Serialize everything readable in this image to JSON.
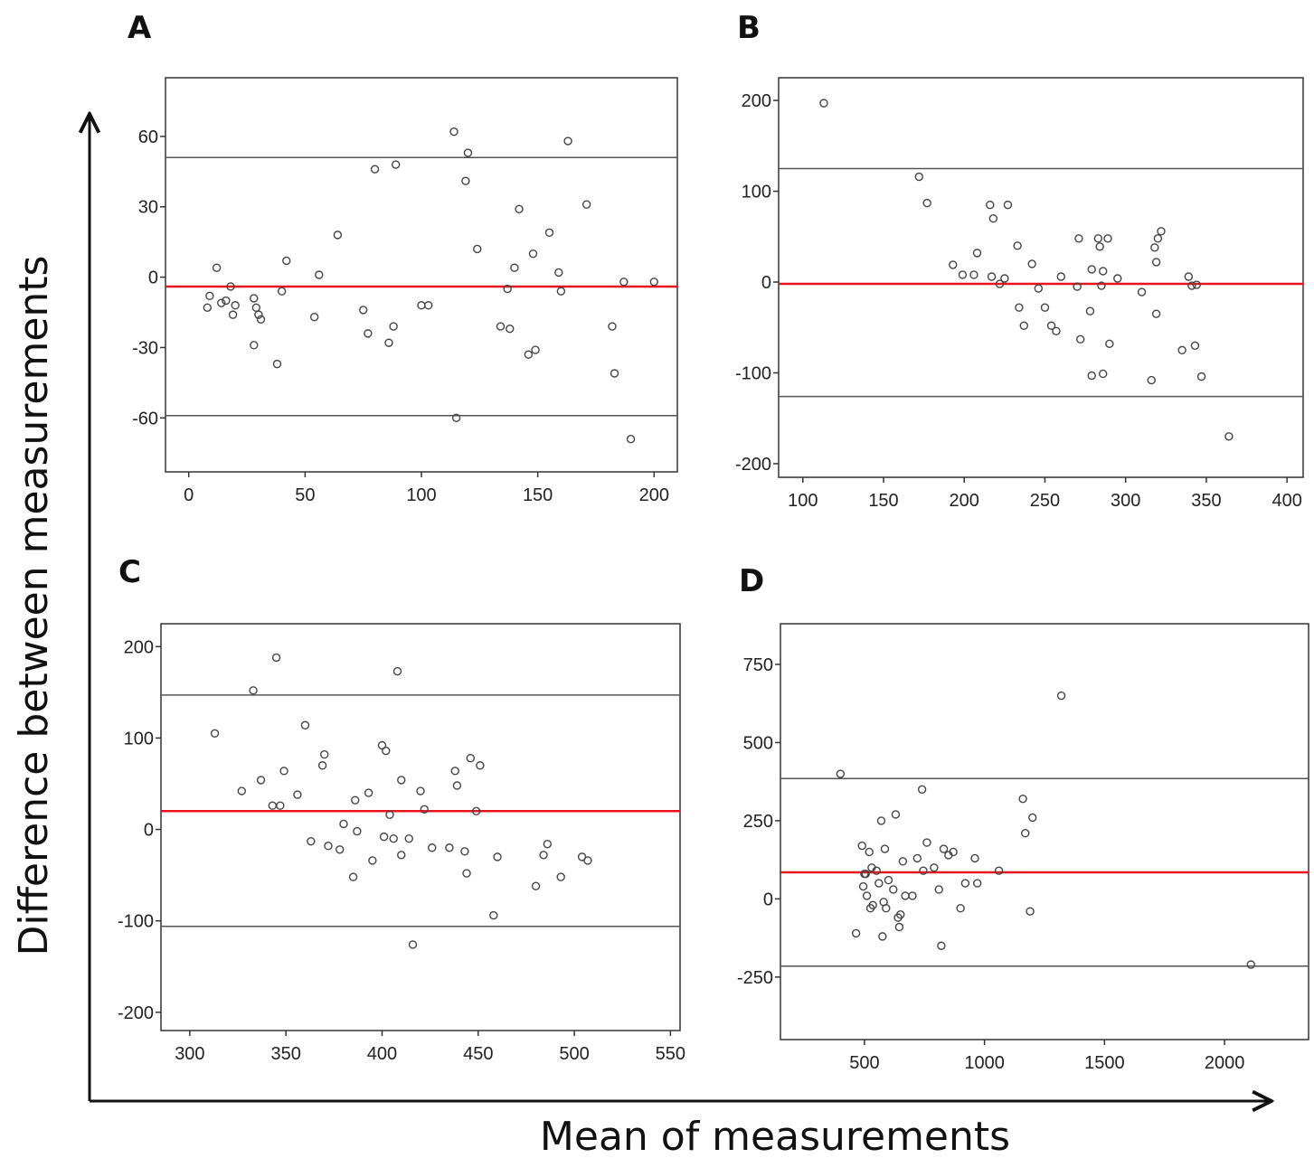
{
  "figure": {
    "x_title": "Mean of measurements",
    "y_title": "Difference between measurements"
  },
  "colors": {
    "mean_line": "#e8141c",
    "limit_line": "#555555",
    "points": "#444444"
  },
  "chart_data": [
    {
      "type": "scatter",
      "panel": "A",
      "xlim": [
        -10,
        210
      ],
      "ylim": [
        -83,
        85
      ],
      "xticks": [
        0,
        50,
        100,
        150,
        200
      ],
      "yticks": [
        60,
        30,
        0,
        -30,
        -60
      ],
      "mean_line": -4,
      "upper_limit": 51,
      "lower_limit": -59,
      "points": [
        [
          8,
          -13
        ],
        [
          9,
          -8
        ],
        [
          12,
          4
        ],
        [
          14,
          -11
        ],
        [
          16,
          -10
        ],
        [
          18,
          -4
        ],
        [
          19,
          -16
        ],
        [
          20,
          -12
        ],
        [
          28,
          -9
        ],
        [
          28,
          -29
        ],
        [
          29,
          -13
        ],
        [
          30,
          -16
        ],
        [
          31,
          -18
        ],
        [
          38,
          -37
        ],
        [
          40,
          -6
        ],
        [
          42,
          7
        ],
        [
          54,
          -17
        ],
        [
          56,
          1
        ],
        [
          64,
          18
        ],
        [
          75,
          -14
        ],
        [
          77,
          -24
        ],
        [
          80,
          46
        ],
        [
          86,
          -28
        ],
        [
          88,
          -21
        ],
        [
          89,
          48
        ],
        [
          100,
          -12
        ],
        [
          103,
          -12
        ],
        [
          114,
          62
        ],
        [
          115,
          -60
        ],
        [
          119,
          41
        ],
        [
          120,
          53
        ],
        [
          124,
          12
        ],
        [
          134,
          -21
        ],
        [
          137,
          -5
        ],
        [
          138,
          -22
        ],
        [
          140,
          4
        ],
        [
          142,
          29
        ],
        [
          146,
          -33
        ],
        [
          148,
          10
        ],
        [
          149,
          -31
        ],
        [
          155,
          19
        ],
        [
          159,
          2
        ],
        [
          160,
          -6
        ],
        [
          163,
          58
        ],
        [
          171,
          31
        ],
        [
          182,
          -21
        ],
        [
          183,
          -41
        ],
        [
          187,
          -2
        ],
        [
          190,
          -69
        ],
        [
          200,
          -2
        ]
      ]
    },
    {
      "type": "scatter",
      "panel": "B",
      "xlim": [
        85,
        410
      ],
      "ylim": [
        -215,
        225
      ],
      "xticks": [
        100,
        150,
        200,
        250,
        300,
        350,
        400
      ],
      "yticks": [
        200,
        100,
        0,
        -100,
        -200
      ],
      "mean_line": -2,
      "upper_limit": 125,
      "lower_limit": -126,
      "points": [
        [
          113,
          197
        ],
        [
          172,
          116
        ],
        [
          177,
          87
        ],
        [
          193,
          19
        ],
        [
          199,
          8
        ],
        [
          206,
          8
        ],
        [
          208,
          32
        ],
        [
          216,
          85
        ],
        [
          217,
          6
        ],
        [
          218,
          70
        ],
        [
          222,
          -2
        ],
        [
          225,
          4
        ],
        [
          227,
          85
        ],
        [
          233,
          40
        ],
        [
          234,
          -28
        ],
        [
          237,
          -48
        ],
        [
          242,
          20
        ],
        [
          246,
          -7
        ],
        [
          250,
          -28
        ],
        [
          254,
          -48
        ],
        [
          257,
          -54
        ],
        [
          260,
          6
        ],
        [
          270,
          -5
        ],
        [
          271,
          48
        ],
        [
          272,
          -63
        ],
        [
          278,
          -32
        ],
        [
          279,
          14
        ],
        [
          279,
          -103
        ],
        [
          283,
          48
        ],
        [
          284,
          39
        ],
        [
          285,
          -4
        ],
        [
          286,
          -101
        ],
        [
          286,
          12
        ],
        [
          289,
          48
        ],
        [
          290,
          -68
        ],
        [
          295,
          4
        ],
        [
          310,
          -11
        ],
        [
          316,
          -108
        ],
        [
          318,
          38
        ],
        [
          319,
          -35
        ],
        [
          319,
          22
        ],
        [
          320,
          48
        ],
        [
          322,
          56
        ],
        [
          335,
          -75
        ],
        [
          339,
          6
        ],
        [
          341,
          -4
        ],
        [
          343,
          -70
        ],
        [
          344,
          -3
        ],
        [
          347,
          -104
        ],
        [
          364,
          -170
        ]
      ]
    },
    {
      "type": "scatter",
      "panel": "C",
      "xlim": [
        285,
        555
      ],
      "ylim": [
        -220,
        225
      ],
      "xticks": [
        300,
        350,
        400,
        450,
        500,
        550
      ],
      "yticks": [
        200,
        100,
        0,
        -100,
        -200
      ],
      "mean_line": 20,
      "upper_limit": 147,
      "lower_limit": -106,
      "points": [
        [
          313,
          105
        ],
        [
          327,
          42
        ],
        [
          333,
          152
        ],
        [
          337,
          54
        ],
        [
          343,
          26
        ],
        [
          345,
          188
        ],
        [
          347,
          26
        ],
        [
          349,
          64
        ],
        [
          356,
          38
        ],
        [
          360,
          114
        ],
        [
          363,
          -13
        ],
        [
          369,
          70
        ],
        [
          370,
          82
        ],
        [
          372,
          -18
        ],
        [
          378,
          -22
        ],
        [
          380,
          6
        ],
        [
          385,
          -52
        ],
        [
          386,
          32
        ],
        [
          387,
          -2
        ],
        [
          393,
          40
        ],
        [
          395,
          -34
        ],
        [
          400,
          92
        ],
        [
          401,
          -8
        ],
        [
          402,
          86
        ],
        [
          404,
          16
        ],
        [
          406,
          -10
        ],
        [
          408,
          173
        ],
        [
          410,
          -28
        ],
        [
          410,
          54
        ],
        [
          414,
          -10
        ],
        [
          420,
          42
        ],
        [
          422,
          22
        ],
        [
          426,
          -20
        ],
        [
          435,
          -20
        ],
        [
          438,
          64
        ],
        [
          439,
          48
        ],
        [
          443,
          -24
        ],
        [
          444,
          -48
        ],
        [
          446,
          78
        ],
        [
          449,
          20
        ],
        [
          451,
          70
        ],
        [
          458,
          -94
        ],
        [
          460,
          -30
        ],
        [
          480,
          -62
        ],
        [
          484,
          -28
        ],
        [
          486,
          -16
        ],
        [
          493,
          -52
        ],
        [
          504,
          -30
        ],
        [
          507,
          -34
        ],
        [
          416,
          -126
        ]
      ]
    },
    {
      "type": "scatter",
      "panel": "D",
      "xlim": [
        150,
        2350
      ],
      "ylim": [
        -450,
        880
      ],
      "xticks": [
        500,
        1000,
        1500,
        2000
      ],
      "yticks": [
        750,
        500,
        250,
        0,
        -250
      ],
      "mean_line": 85,
      "upper_limit": 385,
      "lower_limit": -215,
      "points": [
        [
          400,
          400
        ],
        [
          465,
          -110
        ],
        [
          490,
          170
        ],
        [
          495,
          40
        ],
        [
          500,
          80
        ],
        [
          505,
          80
        ],
        [
          510,
          10
        ],
        [
          520,
          150
        ],
        [
          525,
          -30
        ],
        [
          530,
          100
        ],
        [
          535,
          -20
        ],
        [
          550,
          90
        ],
        [
          560,
          50
        ],
        [
          570,
          250
        ],
        [
          575,
          -120
        ],
        [
          580,
          -10
        ],
        [
          585,
          160
        ],
        [
          590,
          -30
        ],
        [
          600,
          60
        ],
        [
          620,
          30
        ],
        [
          630,
          270
        ],
        [
          640,
          -60
        ],
        [
          645,
          -90
        ],
        [
          650,
          -50
        ],
        [
          660,
          120
        ],
        [
          670,
          10
        ],
        [
          700,
          10
        ],
        [
          720,
          130
        ],
        [
          740,
          350
        ],
        [
          745,
          90
        ],
        [
          760,
          180
        ],
        [
          790,
          100
        ],
        [
          810,
          30
        ],
        [
          820,
          -150
        ],
        [
          830,
          160
        ],
        [
          850,
          140
        ],
        [
          870,
          150
        ],
        [
          900,
          -30
        ],
        [
          920,
          50
        ],
        [
          960,
          130
        ],
        [
          970,
          50
        ],
        [
          1060,
          90
        ],
        [
          1160,
          320
        ],
        [
          1170,
          210
        ],
        [
          1190,
          -40
        ],
        [
          1200,
          260
        ],
        [
          1320,
          650
        ],
        [
          2110,
          -210
        ]
      ]
    }
  ]
}
